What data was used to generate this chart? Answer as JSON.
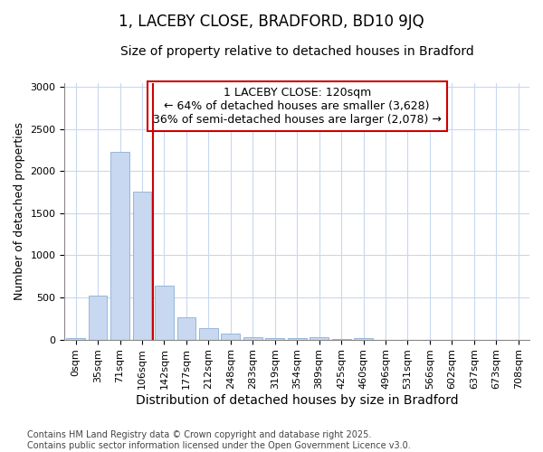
{
  "title": "1, LACEBY CLOSE, BRADFORD, BD10 9JQ",
  "subtitle": "Size of property relative to detached houses in Bradford",
  "xlabel": "Distribution of detached houses by size in Bradford",
  "ylabel": "Number of detached properties",
  "categories": [
    "0sqm",
    "35sqm",
    "71sqm",
    "106sqm",
    "142sqm",
    "177sqm",
    "212sqm",
    "248sqm",
    "283sqm",
    "319sqm",
    "354sqm",
    "389sqm",
    "425sqm",
    "460sqm",
    "496sqm",
    "531sqm",
    "566sqm",
    "602sqm",
    "637sqm",
    "673sqm",
    "708sqm"
  ],
  "values": [
    20,
    520,
    2230,
    1760,
    640,
    260,
    140,
    70,
    30,
    20,
    20,
    30,
    5,
    20,
    0,
    0,
    0,
    0,
    0,
    0,
    0
  ],
  "bar_color": "#c8d8f0",
  "bar_edge_color": "#8aafd4",
  "vline_x": 3.5,
  "vline_color": "#cc0000",
  "ylim": [
    0,
    3050
  ],
  "yticks": [
    0,
    500,
    1000,
    1500,
    2000,
    2500,
    3000
  ],
  "annotation_text": "1 LACEBY CLOSE: 120sqm\n← 64% of detached houses are smaller (3,628)\n36% of semi-detached houses are larger (2,078) →",
  "annotation_box_color": "#cc0000",
  "footnote": "Contains HM Land Registry data © Crown copyright and database right 2025.\nContains public sector information licensed under the Open Government Licence v3.0.",
  "bg_color": "#ffffff",
  "grid_color": "#c8d8f0",
  "title_fontsize": 12,
  "subtitle_fontsize": 10,
  "xlabel_fontsize": 10,
  "ylabel_fontsize": 9,
  "tick_fontsize": 8,
  "annotation_fontsize": 9,
  "footnote_fontsize": 7
}
